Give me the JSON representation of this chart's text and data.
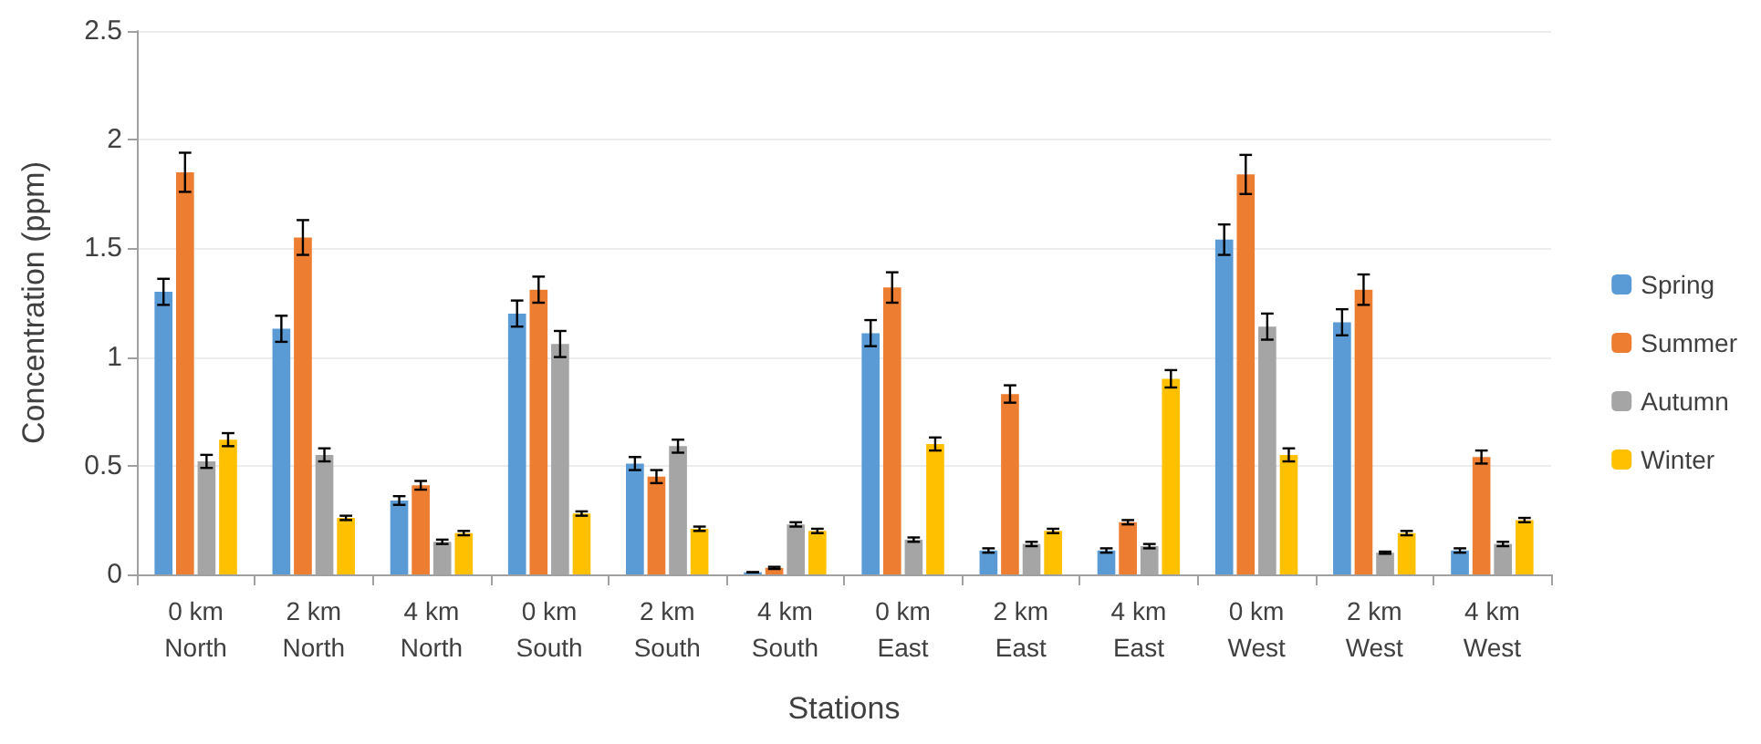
{
  "chart_data": {
    "type": "bar",
    "xlabel": "Stations",
    "ylabel": "Concentration (ppm)",
    "categories": [
      "0 km\nNorth",
      "2 km\nNorth",
      "4 km\nNorth",
      "0 km\nSouth",
      "2 km\nSouth",
      "4 km\nSouth",
      "0 km\nEast",
      "2 km\nEast",
      "4 km\nEast",
      "0 km\nWest",
      "2 km\nWest",
      "4 km\nWest"
    ],
    "series": [
      {
        "name": "Spring",
        "color": "#5b9bd5",
        "values": [
          1.3,
          1.13,
          0.34,
          1.2,
          0.51,
          0.01,
          1.11,
          0.11,
          0.11,
          1.54,
          1.16,
          0.11
        ],
        "errors": [
          0.06,
          0.06,
          0.02,
          0.06,
          0.03,
          null,
          0.06,
          0.01,
          0.01,
          0.07,
          0.06,
          0.01
        ]
      },
      {
        "name": "Summer",
        "color": "#ed7d31",
        "values": [
          1.85,
          1.55,
          0.41,
          1.31,
          0.45,
          0.03,
          1.32,
          0.83,
          0.24,
          1.84,
          1.31,
          0.54
        ],
        "errors": [
          0.09,
          0.08,
          0.02,
          0.06,
          0.03,
          0.005,
          0.07,
          0.04,
          0.01,
          0.09,
          0.07,
          0.03
        ]
      },
      {
        "name": "Autumn",
        "color": "#a5a5a5",
        "values": [
          0.52,
          0.55,
          0.15,
          1.06,
          0.59,
          0.23,
          0.16,
          0.14,
          0.13,
          1.14,
          0.1,
          0.14
        ],
        "errors": [
          0.03,
          0.03,
          0.01,
          0.06,
          0.03,
          0.01,
          0.01,
          0.01,
          0.01,
          0.06,
          0.005,
          0.01
        ]
      },
      {
        "name": "Winter",
        "color": "#ffc000",
        "values": [
          0.62,
          0.26,
          0.19,
          0.28,
          0.21,
          0.2,
          0.6,
          0.2,
          0.9,
          0.55,
          0.19,
          0.25
        ],
        "errors": [
          0.03,
          0.01,
          0.01,
          0.01,
          0.01,
          0.01,
          0.03,
          0.01,
          0.04,
          0.03,
          0.01,
          0.01
        ]
      }
    ],
    "ylim": [
      0,
      2.5
    ],
    "yticks": [
      0,
      0.5,
      1,
      1.5,
      2,
      2.5
    ],
    "grid": "y",
    "legend": "right"
  }
}
